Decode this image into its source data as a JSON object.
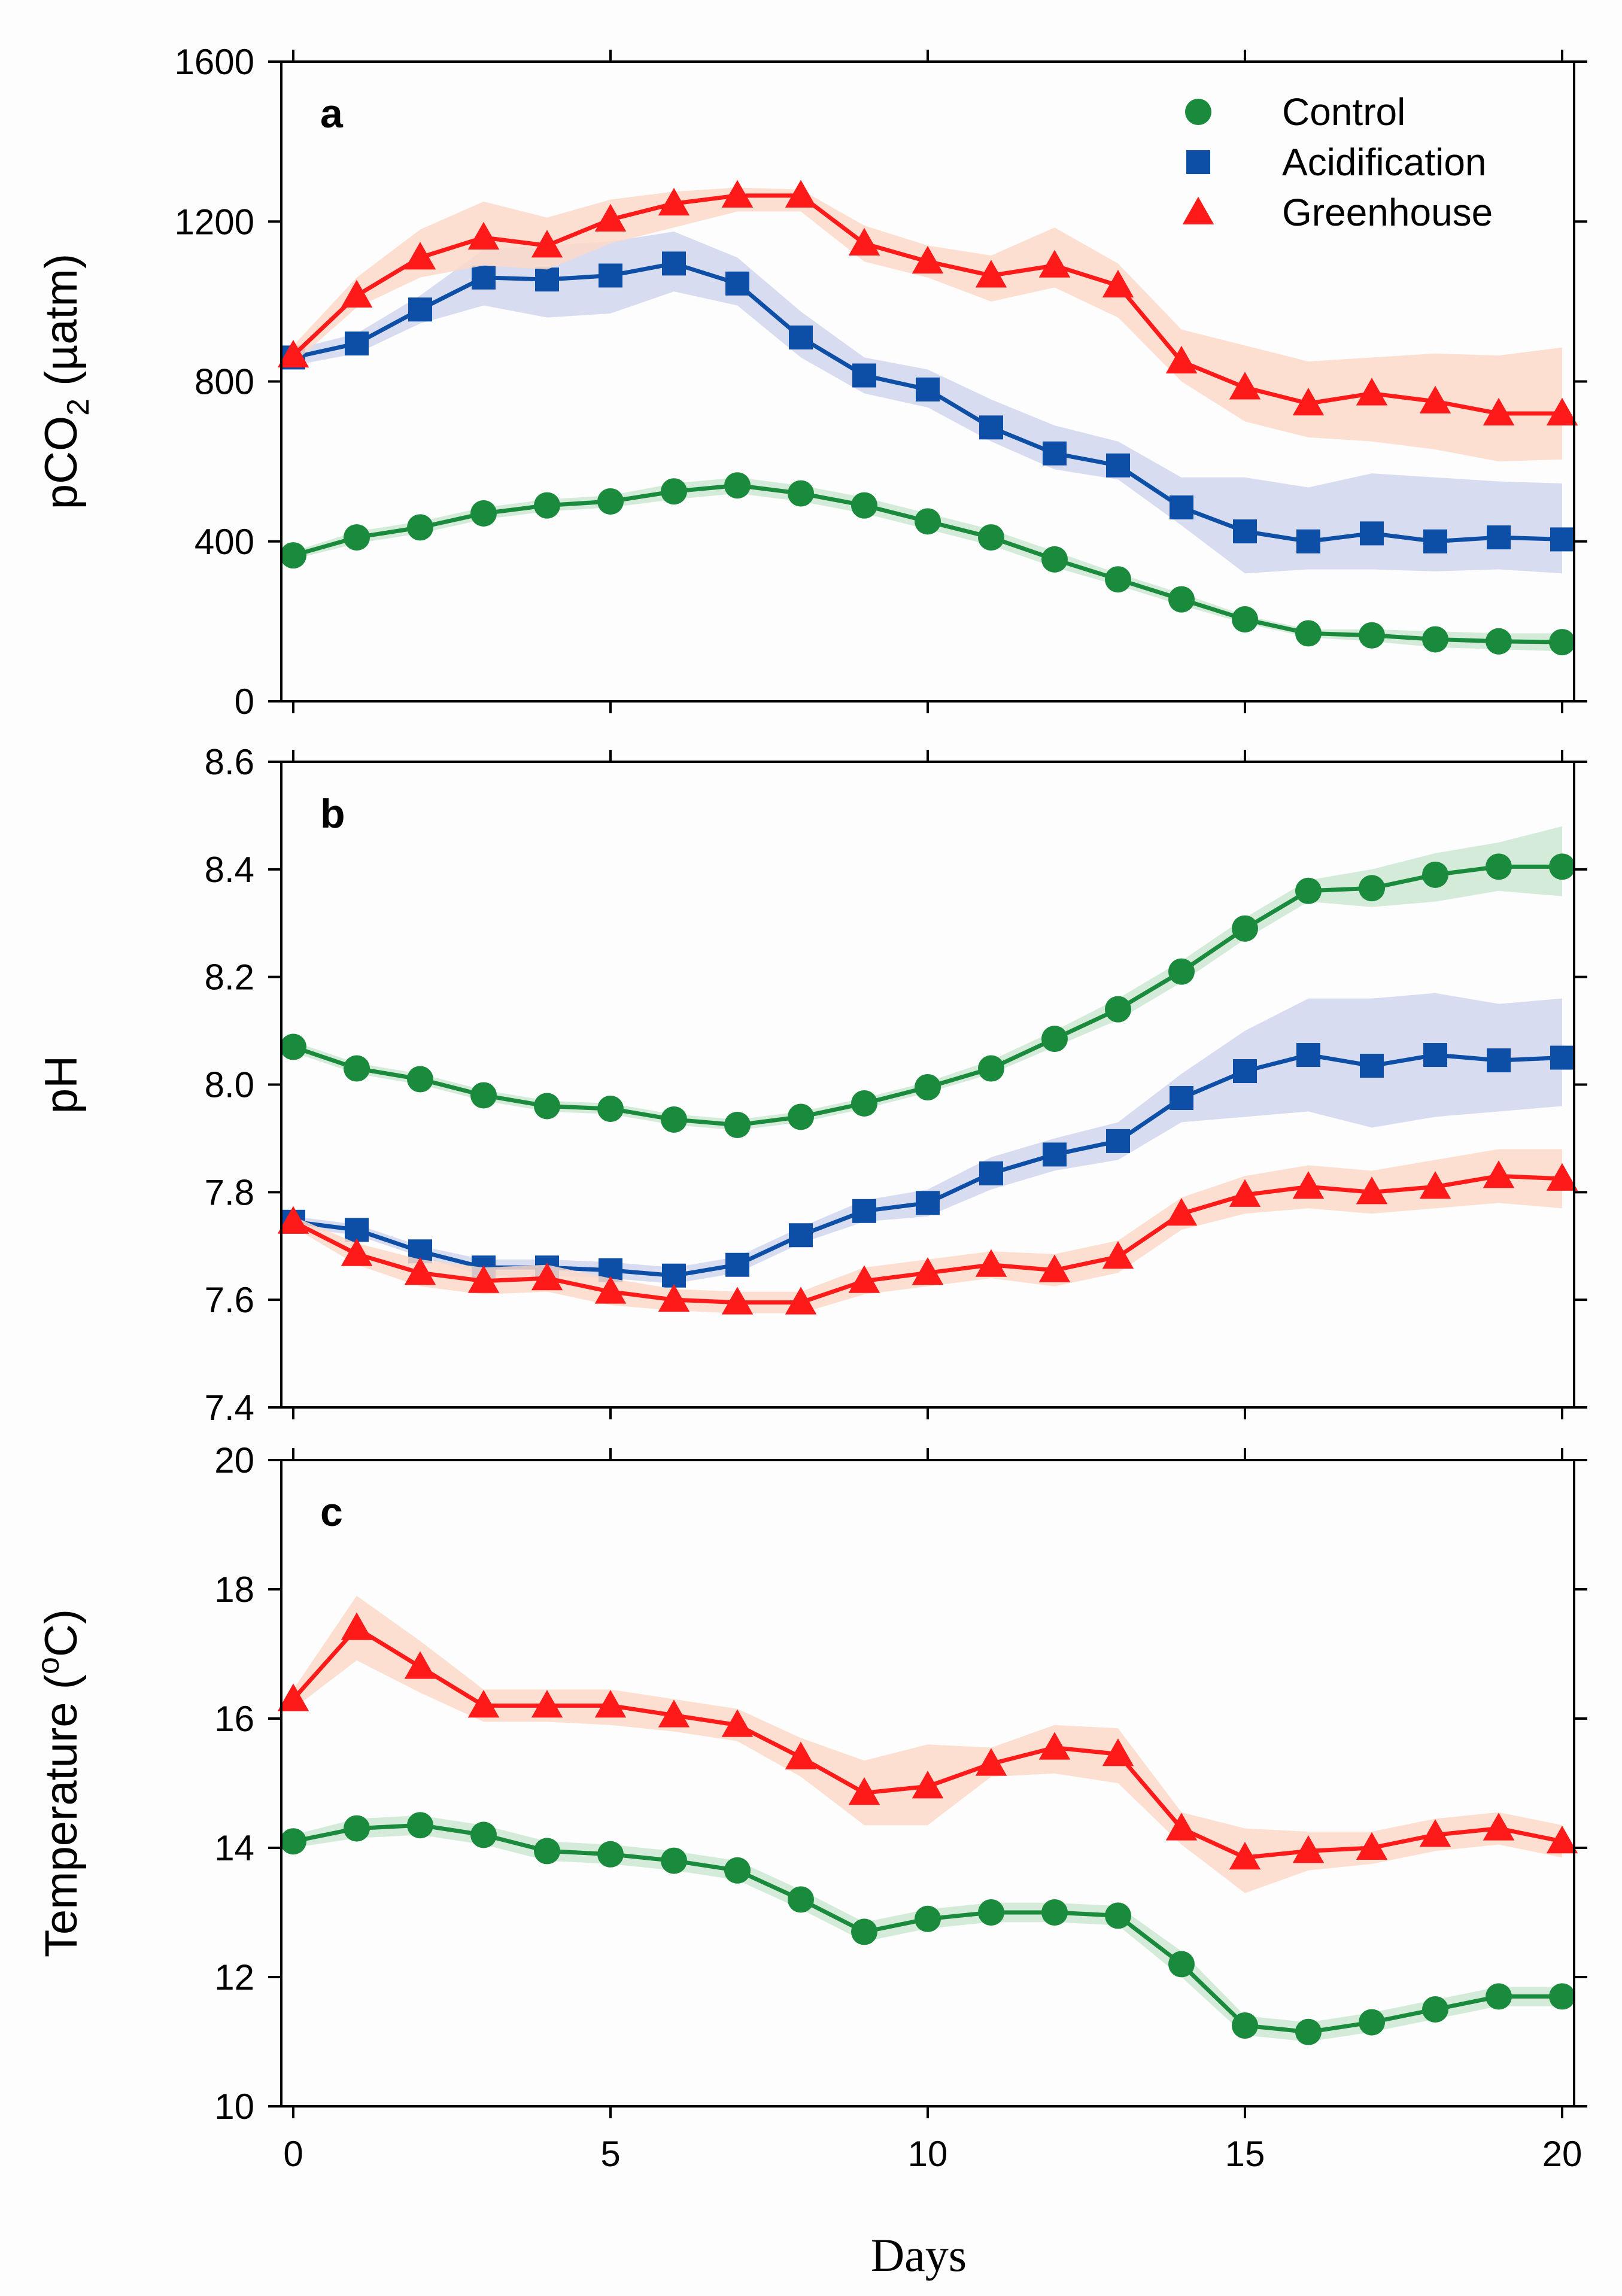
{
  "colors": {
    "control": "#1a8a3c",
    "acidification": "#0d4ea6",
    "greenhouse": "#ff1a1a",
    "control_band": "#cde8d2",
    "acidification_band": "#d1d6ef",
    "greenhouse_band": "#fbd9c9"
  },
  "legend": {
    "control": "Control",
    "acidification": "Acidification",
    "greenhouse": "Greenhouse"
  },
  "xlabel": "Days",
  "chart_data": [
    {
      "type": "line",
      "panel": "a",
      "ylabel": "pCO2 (µatm)",
      "ylabel_parts": {
        "prefix": "pCO",
        "sub": "2",
        "suffix": " (µatm)"
      },
      "xlim": [
        0,
        20
      ],
      "ylim": [
        0,
        1600
      ],
      "xticks": [
        "0",
        "5",
        "10",
        "15",
        "20"
      ],
      "yticks": [
        "0",
        "400",
        "800",
        "1200",
        "1600"
      ],
      "x": [
        0,
        1,
        2,
        3,
        4,
        5,
        6,
        7,
        8,
        9,
        10,
        11,
        12,
        13,
        14,
        15,
        16,
        17,
        18,
        19,
        20
      ],
      "legend_position": "top-right",
      "series": [
        {
          "key": "control",
          "name": "Control",
          "marker": "circle",
          "values": [
            365,
            410,
            435,
            470,
            490,
            500,
            525,
            540,
            520,
            490,
            450,
            410,
            355,
            305,
            255,
            205,
            170,
            165,
            155,
            150,
            148
          ],
          "band": [
            [
              355,
              375
            ],
            [
              395,
              425
            ],
            [
              420,
              450
            ],
            [
              455,
              485
            ],
            [
              475,
              505
            ],
            [
              485,
              515
            ],
            [
              505,
              545
            ],
            [
              520,
              560
            ],
            [
              500,
              540
            ],
            [
              470,
              510
            ],
            [
              430,
              470
            ],
            [
              390,
              430
            ],
            [
              335,
              375
            ],
            [
              290,
              320
            ],
            [
              240,
              270
            ],
            [
              195,
              215
            ],
            [
              160,
              180
            ],
            [
              150,
              180
            ],
            [
              135,
              175
            ],
            [
              130,
              170
            ],
            [
              125,
              170
            ]
          ]
        },
        {
          "key": "acidification",
          "name": "Acidification",
          "marker": "square",
          "values": [
            860,
            895,
            980,
            1060,
            1055,
            1065,
            1095,
            1045,
            910,
            815,
            780,
            685,
            620,
            590,
            485,
            425,
            400,
            420,
            400,
            410,
            405
          ],
          "band": [
            [
              840,
              880
            ],
            [
              870,
              920
            ],
            [
              945,
              1015
            ],
            [
              990,
              1130
            ],
            [
              960,
              1140
            ],
            [
              970,
              1150
            ],
            [
              1025,
              1175
            ],
            [
              990,
              1110
            ],
            [
              860,
              975
            ],
            [
              770,
              860
            ],
            [
              735,
              830
            ],
            [
              650,
              755
            ],
            [
              580,
              690
            ],
            [
              555,
              650
            ],
            [
              440,
              560
            ],
            [
              320,
              560
            ],
            [
              330,
              535
            ],
            [
              330,
              570
            ],
            [
              325,
              560
            ],
            [
              330,
              550
            ],
            [
              320,
              545
            ]
          ]
        },
        {
          "key": "greenhouse",
          "name": "Greenhouse",
          "marker": "triangle",
          "values": [
            865,
            1015,
            1110,
            1160,
            1140,
            1205,
            1245,
            1265,
            1265,
            1145,
            1100,
            1065,
            1090,
            1040,
            850,
            785,
            745,
            770,
            750,
            720,
            720
          ],
          "band": [
            [
              845,
              890
            ],
            [
              985,
              1060
            ],
            [
              1060,
              1180
            ],
            [
              1090,
              1250
            ],
            [
              1080,
              1210
            ],
            [
              1145,
              1255
            ],
            [
              1185,
              1275
            ],
            [
              1225,
              1285
            ],
            [
              1225,
              1280
            ],
            [
              1100,
              1190
            ],
            [
              1060,
              1140
            ],
            [
              1000,
              1115
            ],
            [
              1035,
              1185
            ],
            [
              960,
              1095
            ],
            [
              800,
              930
            ],
            [
              700,
              890
            ],
            [
              660,
              850
            ],
            [
              650,
              860
            ],
            [
              630,
              870
            ],
            [
              600,
              865
            ],
            [
              605,
              885
            ]
          ]
        }
      ]
    },
    {
      "type": "line",
      "panel": "b",
      "ylabel": "pH",
      "xlim": [
        0,
        20
      ],
      "ylim": [
        7.4,
        8.6
      ],
      "xticks": [
        "0",
        "5",
        "10",
        "15",
        "20"
      ],
      "yticks": [
        "7.4",
        "7.6",
        "7.8",
        "8.0",
        "8.2",
        "8.4",
        "8.6"
      ],
      "x": [
        0,
        1,
        2,
        3,
        4,
        5,
        6,
        7,
        8,
        9,
        10,
        11,
        12,
        13,
        14,
        15,
        16,
        17,
        18,
        19,
        20
      ],
      "series": [
        {
          "key": "control",
          "name": "Control",
          "marker": "circle",
          "values": [
            8.07,
            8.03,
            8.01,
            7.98,
            7.96,
            7.955,
            7.935,
            7.925,
            7.94,
            7.965,
            7.995,
            8.03,
            8.085,
            8.14,
            8.21,
            8.29,
            8.36,
            8.365,
            8.39,
            8.405,
            8.405
          ],
          "band": [
            [
              8.06,
              8.08
            ],
            [
              8.02,
              8.04
            ],
            [
              8.0,
              8.02
            ],
            [
              7.97,
              7.99
            ],
            [
              7.95,
              7.97
            ],
            [
              7.945,
              7.965
            ],
            [
              7.925,
              7.945
            ],
            [
              7.915,
              7.935
            ],
            [
              7.93,
              7.95
            ],
            [
              7.955,
              7.975
            ],
            [
              7.985,
              8.005
            ],
            [
              8.02,
              8.045
            ],
            [
              8.07,
              8.1
            ],
            [
              8.12,
              8.16
            ],
            [
              8.19,
              8.23
            ],
            [
              8.27,
              8.31
            ],
            [
              8.34,
              8.38
            ],
            [
              8.33,
              8.4
            ],
            [
              8.34,
              8.43
            ],
            [
              8.36,
              8.45
            ],
            [
              8.35,
              8.48
            ]
          ]
        },
        {
          "key": "acidification",
          "name": "Acidification",
          "marker": "square",
          "values": [
            7.745,
            7.73,
            7.69,
            7.66,
            7.66,
            7.655,
            7.645,
            7.665,
            7.72,
            7.765,
            7.78,
            7.835,
            7.87,
            7.895,
            7.975,
            8.025,
            8.055,
            8.035,
            8.055,
            8.045,
            8.05
          ],
          "band": [
            [
              7.735,
              7.755
            ],
            [
              7.72,
              7.74
            ],
            [
              7.68,
              7.7
            ],
            [
              7.645,
              7.675
            ],
            [
              7.645,
              7.675
            ],
            [
              7.64,
              7.67
            ],
            [
              7.63,
              7.66
            ],
            [
              7.65,
              7.68
            ],
            [
              7.705,
              7.735
            ],
            [
              7.745,
              7.785
            ],
            [
              7.755,
              7.805
            ],
            [
              7.805,
              7.865
            ],
            [
              7.84,
              7.9
            ],
            [
              7.86,
              7.93
            ],
            [
              7.93,
              8.02
            ],
            [
              7.94,
              8.1
            ],
            [
              7.95,
              8.16
            ],
            [
              7.92,
              8.16
            ],
            [
              7.94,
              8.17
            ],
            [
              7.95,
              8.15
            ],
            [
              7.96,
              8.16
            ]
          ]
        },
        {
          "key": "greenhouse",
          "name": "Greenhouse",
          "marker": "triangle",
          "values": [
            7.745,
            7.685,
            7.65,
            7.635,
            7.64,
            7.615,
            7.6,
            7.595,
            7.595,
            7.635,
            7.65,
            7.665,
            7.655,
            7.68,
            7.76,
            7.795,
            7.81,
            7.8,
            7.81,
            7.83,
            7.825
          ],
          "band": [
            [
              7.735,
              7.755
            ],
            [
              7.665,
              7.705
            ],
            [
              7.625,
              7.675
            ],
            [
              7.61,
              7.66
            ],
            [
              7.615,
              7.665
            ],
            [
              7.59,
              7.64
            ],
            [
              7.58,
              7.62
            ],
            [
              7.575,
              7.615
            ],
            [
              7.575,
              7.615
            ],
            [
              7.61,
              7.66
            ],
            [
              7.625,
              7.675
            ],
            [
              7.64,
              7.69
            ],
            [
              7.625,
              7.685
            ],
            [
              7.65,
              7.71
            ],
            [
              7.73,
              7.79
            ],
            [
              7.76,
              7.83
            ],
            [
              7.77,
              7.85
            ],
            [
              7.76,
              7.84
            ],
            [
              7.77,
              7.86
            ],
            [
              7.78,
              7.88
            ],
            [
              7.77,
              7.88
            ]
          ]
        }
      ]
    },
    {
      "type": "line",
      "panel": "c",
      "ylabel": "Temperature (°C)",
      "ylabel_parts": {
        "prefix": "Temperature (",
        "sup": "o",
        "suffix": "C)"
      },
      "xlim": [
        0,
        20
      ],
      "ylim": [
        10,
        20
      ],
      "xticks": [
        "0",
        "5",
        "10",
        "15",
        "20"
      ],
      "yticks": [
        "10",
        "12",
        "14",
        "16",
        "18",
        "20"
      ],
      "x": [
        0,
        1,
        2,
        3,
        4,
        5,
        6,
        7,
        8,
        9,
        10,
        11,
        12,
        13,
        14,
        15,
        16,
        17,
        18,
        19,
        20
      ],
      "series": [
        {
          "key": "control",
          "name": "Control",
          "marker": "circle",
          "values": [
            14.1,
            14.3,
            14.35,
            14.2,
            13.95,
            13.9,
            13.8,
            13.65,
            13.2,
            12.7,
            12.9,
            13.0,
            13.0,
            12.95,
            12.2,
            11.25,
            11.15,
            11.3,
            11.5,
            11.7,
            11.7
          ],
          "band": [
            [
              14.0,
              14.2
            ],
            [
              14.15,
              14.45
            ],
            [
              14.2,
              14.5
            ],
            [
              14.05,
              14.35
            ],
            [
              13.8,
              14.1
            ],
            [
              13.75,
              14.05
            ],
            [
              13.65,
              13.95
            ],
            [
              13.5,
              13.8
            ],
            [
              13.05,
              13.35
            ],
            [
              12.55,
              12.85
            ],
            [
              12.75,
              13.05
            ],
            [
              12.85,
              13.15
            ],
            [
              12.85,
              13.15
            ],
            [
              12.8,
              13.1
            ],
            [
              12.0,
              12.4
            ],
            [
              11.1,
              11.4
            ],
            [
              11.0,
              11.3
            ],
            [
              11.15,
              11.45
            ],
            [
              11.35,
              11.65
            ],
            [
              11.55,
              11.85
            ],
            [
              11.55,
              11.85
            ]
          ]
        },
        {
          "key": "greenhouse",
          "name": "Greenhouse",
          "marker": "triangle",
          "values": [
            16.3,
            17.4,
            16.8,
            16.2,
            16.2,
            16.2,
            16.05,
            15.9,
            15.4,
            14.85,
            14.95,
            15.3,
            15.55,
            15.45,
            14.3,
            13.85,
            13.95,
            14.0,
            14.2,
            14.3,
            14.1
          ],
          "band": [
            [
              16.15,
              16.45
            ],
            [
              16.9,
              17.9
            ],
            [
              16.4,
              17.2
            ],
            [
              15.95,
              16.45
            ],
            [
              15.95,
              16.45
            ],
            [
              15.9,
              16.45
            ],
            [
              15.8,
              16.3
            ],
            [
              15.65,
              16.15
            ],
            [
              15.1,
              15.7
            ],
            [
              14.35,
              15.35
            ],
            [
              14.35,
              15.6
            ],
            [
              15.1,
              15.55
            ],
            [
              15.15,
              15.9
            ],
            [
              15.0,
              15.85
            ],
            [
              14.05,
              14.55
            ],
            [
              13.3,
              14.3
            ],
            [
              13.65,
              14.25
            ],
            [
              13.75,
              14.25
            ],
            [
              13.95,
              14.45
            ],
            [
              14.05,
              14.55
            ],
            [
              13.85,
              14.35
            ]
          ]
        }
      ]
    }
  ]
}
